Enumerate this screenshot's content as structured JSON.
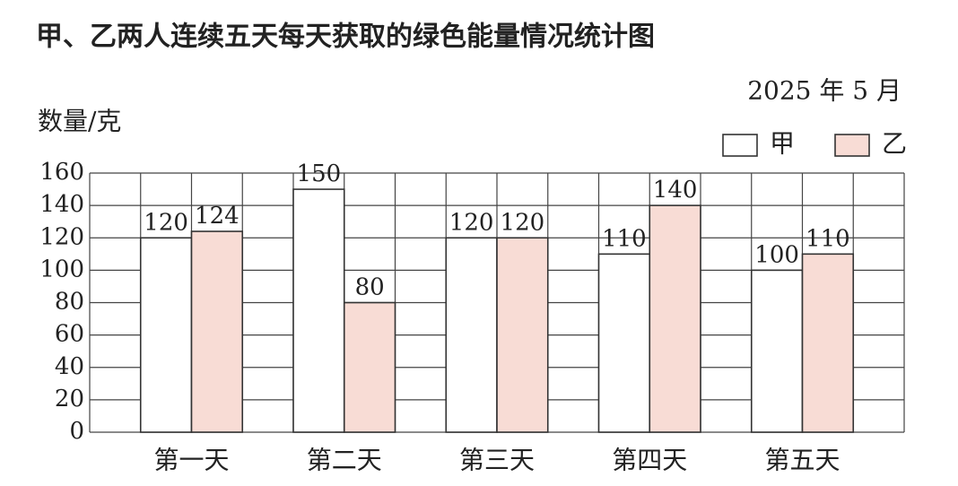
{
  "chart_data": {
    "type": "bar",
    "title": "甲、乙两人连续五天每天获取的绿色能量情况统计图",
    "subtitle": "2025 年 5 月",
    "y_label": "数量/克",
    "categories": [
      "第一天",
      "第二天",
      "第三天",
      "第四天",
      "第五天"
    ],
    "series": [
      {
        "name": "甲",
        "color": "#ffffff",
        "values": [
          120,
          150,
          120,
          110,
          100
        ]
      },
      {
        "name": "乙",
        "color": "#f8dcd5",
        "values": [
          124,
          80,
          120,
          140,
          110
        ]
      }
    ],
    "ylim": [
      0,
      160
    ],
    "yticks": [
      0,
      20,
      40,
      60,
      80,
      100,
      120,
      140,
      160
    ],
    "grid": true,
    "legend": "top-right"
  }
}
